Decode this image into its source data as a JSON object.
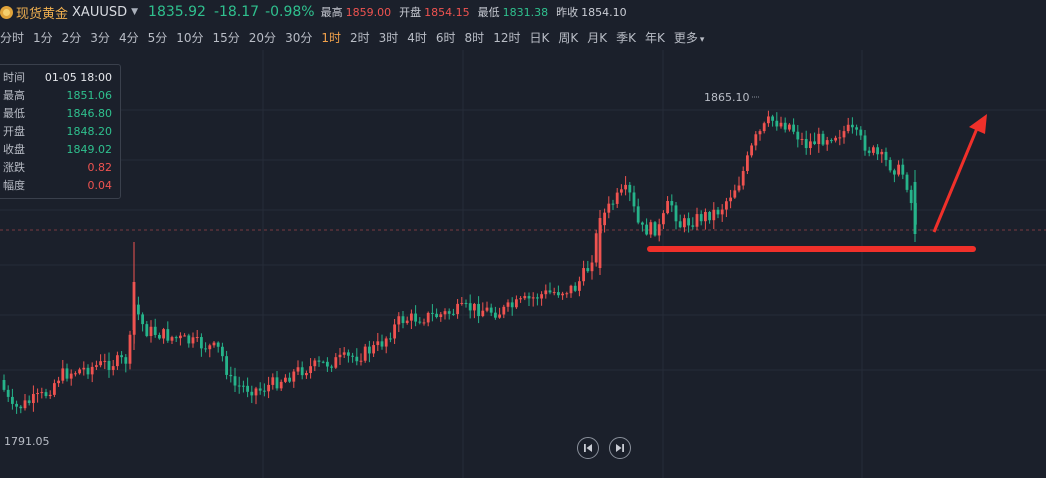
{
  "header": {
    "name": "现货黄金",
    "code": "XAUUSD",
    "price": "1835.92",
    "change": "-18.17",
    "change_pct": "-0.98%",
    "high_label": "最高",
    "high": "1859.00",
    "open_label": "开盘",
    "open": "1854.15",
    "low_label": "最低",
    "low": "1831.38",
    "prev_close_label": "昨收",
    "prev_close": "1854.10"
  },
  "periods": [
    "分时",
    "1分",
    "2分",
    "3分",
    "4分",
    "5分",
    "10分",
    "15分",
    "20分",
    "30分",
    "1时",
    "2时",
    "3时",
    "4时",
    "6时",
    "8时",
    "12时",
    "日K",
    "周K",
    "月K",
    "季K",
    "年K",
    "更多"
  ],
  "active_period": "1时",
  "tooltip": {
    "time_label": "时间",
    "time": "01-05 18:00",
    "high_label": "最高",
    "high": "1851.06",
    "low_label": "最低",
    "low": "1846.80",
    "open_label": "开盘",
    "open": "1848.20",
    "close_label": "收盘",
    "close": "1849.02",
    "change_label": "涨跌",
    "change": "0.82",
    "amp_label": "幅度",
    "amp": "0.04"
  },
  "chart_labels": {
    "max_price": "1865.10",
    "min_price": "1791.05"
  },
  "colors": {
    "up": "#ef5350",
    "down": "#26b38a",
    "annotation": "#f0302a",
    "background": "#1b202b"
  },
  "icons": {
    "prev": "skip-previous-icon",
    "next": "skip-next-icon",
    "logo": "gold-coin-icon"
  }
}
